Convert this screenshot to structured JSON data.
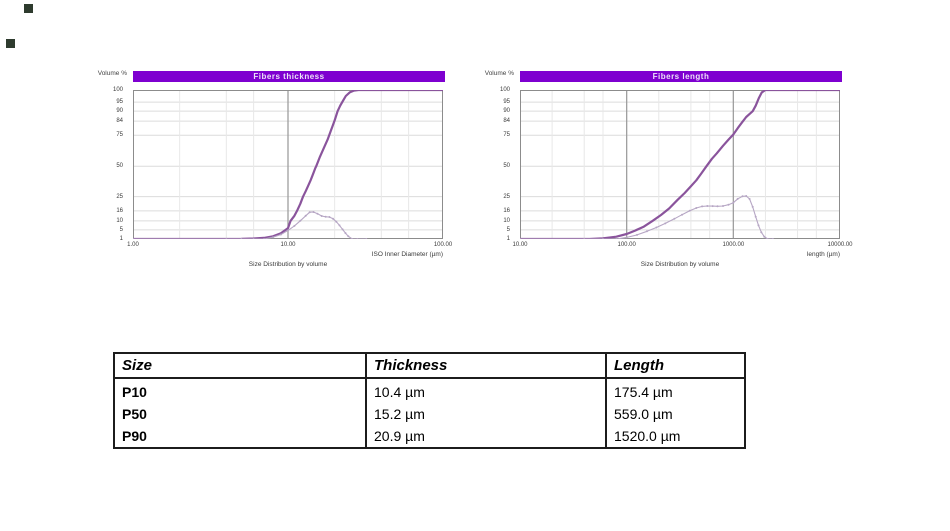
{
  "colors": {
    "title_bar": "#7e00d0",
    "title_text": "#ece0f8",
    "cumulative_curve": "#8a549c",
    "frequency_curve": "#b6a6c4",
    "grid": "#dcdcdc",
    "grid_minor": "#e8e8e8",
    "decade_line": "#9e9e9e",
    "plot_border": "#8c8c8c",
    "artifact_mark": "#2e3b2e"
  },
  "chart_data": [
    {
      "type": "line",
      "title": "Fibers thickness",
      "ylabel": "Volume %",
      "xlabel": "ISO Inner Diameter (µm)",
      "footer": "Size Distribution by volume",
      "x_scale": "log",
      "y_scale_type": "probability",
      "x_range": [
        1,
        100
      ],
      "y_range": [
        1,
        100
      ],
      "grid": "on",
      "legend": "none",
      "x_ticks": [
        {
          "v": 1,
          "label": "1.00"
        },
        {
          "v": 10,
          "label": "10.00"
        },
        {
          "v": 100,
          "label": "100.00"
        }
      ],
      "y_ticks": [
        {
          "v": 100,
          "f": 0.0,
          "label": "100"
        },
        {
          "v": 95,
          "f": 0.081,
          "label": "95"
        },
        {
          "v": 90,
          "f": 0.142,
          "label": "90"
        },
        {
          "v": 84,
          "f": 0.209,
          "label": "84"
        },
        {
          "v": 75,
          "f": 0.304,
          "label": "75"
        },
        {
          "v": 50,
          "f": 0.512,
          "label": "50"
        },
        {
          "v": 25,
          "f": 0.716,
          "label": "25"
        },
        {
          "v": 16,
          "f": 0.811,
          "label": "16"
        },
        {
          "v": 10,
          "f": 0.878,
          "label": "10"
        },
        {
          "v": 5,
          "f": 0.939,
          "label": "5"
        },
        {
          "v": 1,
          "f": 1.0,
          "label": "1"
        }
      ],
      "series": [
        {
          "name": "cumulative-volume",
          "color": "#8a549c",
          "width": 2.2,
          "markers": false,
          "points": [
            [
              1,
              1
            ],
            [
              4,
              1
            ],
            [
              5,
              1.05
            ],
            [
              6,
              1.2
            ],
            [
              7,
              1.5
            ],
            [
              8,
              2.2
            ],
            [
              9,
              3.5
            ],
            [
              10,
              6
            ],
            [
              10.4,
              10
            ],
            [
              11,
              13
            ],
            [
              11.5,
              16.5
            ],
            [
              12,
              20.5
            ],
            [
              12.5,
              25
            ],
            [
              13,
              29.5
            ],
            [
              13.5,
              34
            ],
            [
              14,
              38.5
            ],
            [
              14.5,
              43.5
            ],
            [
              15,
              48.5
            ],
            [
              15.2,
              50
            ],
            [
              16,
              57
            ],
            [
              17,
              64.5
            ],
            [
              18,
              71.5
            ],
            [
              19,
              78.5
            ],
            [
              20,
              84.5
            ],
            [
              20.9,
              90
            ],
            [
              21.7,
              93
            ],
            [
              22.6,
              95.5
            ],
            [
              23.6,
              97.5
            ],
            [
              25,
              99
            ],
            [
              26.5,
              99.7
            ],
            [
              28.5,
              100
            ],
            [
              100,
              100
            ]
          ]
        },
        {
          "name": "frequency-volume",
          "color": "#b6a6c4",
          "width": 1.1,
          "markers": true,
          "points": [
            [
              1,
              0.05
            ],
            [
              4,
              0.1
            ],
            [
              5,
              0.3
            ],
            [
              6,
              0.6
            ],
            [
              7,
              1
            ],
            [
              8,
              1.8
            ],
            [
              9,
              3
            ],
            [
              10,
              4.8
            ],
            [
              11,
              7.2
            ],
            [
              12,
              10
            ],
            [
              13,
              13
            ],
            [
              13.8,
              15.2
            ],
            [
              14.6,
              15.3
            ],
            [
              15.5,
              14.3
            ],
            [
              16.5,
              12.9
            ],
            [
              17.5,
              12.4
            ],
            [
              18.5,
              12.3
            ],
            [
              19.5,
              11.3
            ],
            [
              20.5,
              9.5
            ],
            [
              21.5,
              7.5
            ],
            [
              22.5,
              5.3
            ],
            [
              23.5,
              3.6
            ],
            [
              24.5,
              2.2
            ],
            [
              26,
              1
            ],
            [
              28,
              0.3
            ],
            [
              32,
              0.05
            ]
          ]
        }
      ],
      "percentiles": {
        "P10": 10.4,
        "P50": 15.2,
        "P90": 20.9
      }
    },
    {
      "type": "line",
      "title": "Fibers length",
      "ylabel": "Volume %",
      "xlabel": "length (µm)",
      "footer": "Size Distribution by volume",
      "x_scale": "log",
      "y_scale_type": "probability",
      "x_range": [
        10,
        10000
      ],
      "y_range": [
        1,
        100
      ],
      "grid": "on",
      "legend": "none",
      "x_ticks": [
        {
          "v": 10,
          "label": "10.00"
        },
        {
          "v": 100,
          "label": "100.00"
        },
        {
          "v": 1000,
          "label": "1000.00"
        },
        {
          "v": 10000,
          "label": "10000.00"
        }
      ],
      "y_ticks": [
        {
          "v": 100,
          "f": 0.0,
          "label": "100"
        },
        {
          "v": 95,
          "f": 0.081,
          "label": "95"
        },
        {
          "v": 90,
          "f": 0.142,
          "label": "90"
        },
        {
          "v": 84,
          "f": 0.209,
          "label": "84"
        },
        {
          "v": 75,
          "f": 0.304,
          "label": "75"
        },
        {
          "v": 50,
          "f": 0.512,
          "label": "50"
        },
        {
          "v": 25,
          "f": 0.716,
          "label": "25"
        },
        {
          "v": 16,
          "f": 0.811,
          "label": "16"
        },
        {
          "v": 10,
          "f": 0.878,
          "label": "10"
        },
        {
          "v": 5,
          "f": 0.939,
          "label": "5"
        },
        {
          "v": 1,
          "f": 1.0,
          "label": "1"
        }
      ],
      "series": [
        {
          "name": "cumulative-volume",
          "color": "#8a549c",
          "width": 2.2,
          "markers": false,
          "points": [
            [
              10,
              0.6
            ],
            [
              30,
              0.8
            ],
            [
              45,
              1
            ],
            [
              60,
              1.3
            ],
            [
              80,
              2
            ],
            [
              100,
              3.2
            ],
            [
              120,
              4.7
            ],
            [
              145,
              6.8
            ],
            [
              175.4,
              10
            ],
            [
              210,
              13.5
            ],
            [
              250,
              17.5
            ],
            [
              300,
              23
            ],
            [
              350,
              28
            ],
            [
              400,
              33.5
            ],
            [
              450,
              38.5
            ],
            [
              500,
              44
            ],
            [
              559,
              50
            ],
            [
              630,
              56
            ],
            [
              700,
              60.5
            ],
            [
              800,
              66.5
            ],
            [
              900,
              71.5
            ],
            [
              1000,
              75.5
            ],
            [
              1100,
              79.5
            ],
            [
              1200,
              83
            ],
            [
              1320,
              86.5
            ],
            [
              1430,
              88.5
            ],
            [
              1520,
              90
            ],
            [
              1620,
              93
            ],
            [
              1730,
              96.5
            ],
            [
              1850,
              99
            ],
            [
              2000,
              100
            ],
            [
              10000,
              100
            ]
          ]
        },
        {
          "name": "frequency-volume",
          "color": "#b6a6c4",
          "width": 1.1,
          "markers": true,
          "points": [
            [
              10,
              0.05
            ],
            [
              40,
              0.15
            ],
            [
              60,
              0.4
            ],
            [
              80,
              1
            ],
            [
              100,
              1.7
            ],
            [
              125,
              2.8
            ],
            [
              155,
              4.4
            ],
            [
              190,
              6.3
            ],
            [
              230,
              8.6
            ],
            [
              280,
              11.2
            ],
            [
              330,
              13.7
            ],
            [
              390,
              16
            ],
            [
              450,
              17.8
            ],
            [
              510,
              18.8
            ],
            [
              570,
              19.1
            ],
            [
              640,
              19
            ],
            [
              710,
              18.9
            ],
            [
              800,
              19.1
            ],
            [
              900,
              19.9
            ],
            [
              1000,
              21.2
            ],
            [
              1100,
              23.6
            ],
            [
              1220,
              25.3
            ],
            [
              1320,
              25.6
            ],
            [
              1420,
              23.5
            ],
            [
              1520,
              18.5
            ],
            [
              1620,
              12.5
            ],
            [
              1720,
              7.5
            ],
            [
              1830,
              4
            ],
            [
              1950,
              2
            ],
            [
              2100,
              0.9
            ],
            [
              2350,
              0.2
            ]
          ]
        }
      ],
      "percentiles": {
        "P10": 175.4,
        "P50": 559.0,
        "P90": 1520.0
      }
    },
    {
      "type": "table",
      "columns": [
        "Size",
        "Thickness",
        "Length"
      ],
      "rows": [
        [
          "P10",
          "10.4 µm",
          "175.4 µm"
        ],
        [
          "P50",
          "15.2 µm",
          "559.0 µm"
        ],
        [
          "P90",
          "20.9 µm",
          "1520.0 µm"
        ]
      ]
    }
  ]
}
